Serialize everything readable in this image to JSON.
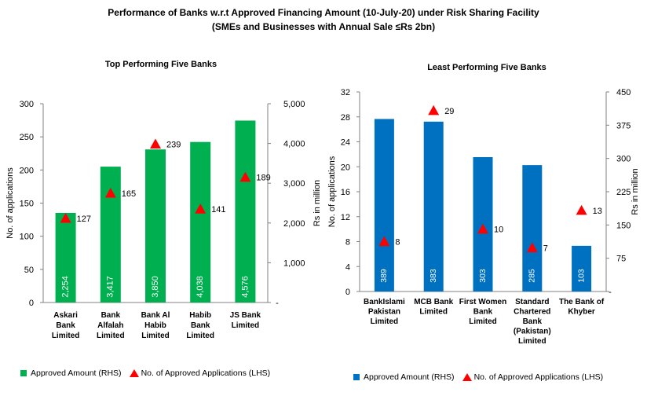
{
  "title": "Performance of Banks w.r.t Approved Financing Amount (10-July-20) under Risk Sharing Facility",
  "subtitle": "(SMEs and Businesses with Annual Sale ≤Rs 2bn)",
  "colors": {
    "left_bar": "#00b050",
    "right_bar": "#0070c0",
    "marker": "#ff0000"
  },
  "chart_data": [
    {
      "type": "bar",
      "title": "Top Performing Five Banks",
      "categories": [
        [
          "Askari",
          "Bank",
          "Limited"
        ],
        [
          "Bank",
          "Alfalah",
          "Limited"
        ],
        [
          "Bank Al",
          "Habib",
          "Limited"
        ],
        [
          "Habib",
          "Bank",
          "Limited"
        ],
        [
          "JS Bank",
          "Limited"
        ]
      ],
      "series": [
        {
          "name": "Approved Amount (RHS)",
          "axis": "right",
          "values": [
            2254,
            3417,
            3850,
            4038,
            4576
          ],
          "labels": [
            "2,254",
            "3,417",
            "3,850",
            "4,038",
            "4,576"
          ]
        },
        {
          "name": "No. of Approved Applications (LHS)",
          "axis": "left",
          "marker": "triangle",
          "values": [
            127,
            165,
            239,
            141,
            189
          ]
        }
      ],
      "ylabel": "No. of applications",
      "ylim": [
        0,
        300
      ],
      "yticks": [
        "0",
        "50",
        "100",
        "150",
        "200",
        "250",
        "300"
      ],
      "y2label": "Rs in million",
      "y2lim": [
        0,
        5000
      ],
      "y2ticks": [
        "-",
        "1,000",
        "2,000",
        "3,000",
        "4,000",
        "5,000"
      ]
    },
    {
      "type": "bar",
      "title": "Least Performing Five Banks",
      "categories": [
        [
          "BankIslami",
          "Pakistan",
          "Limited"
        ],
        [
          "MCB Bank",
          "Limited"
        ],
        [
          "First Women",
          "Bank",
          "Limited"
        ],
        [
          "Standard",
          "Chartered",
          "Bank",
          "(Pakistan)",
          "Limited"
        ],
        [
          "The Bank of",
          "Khyber"
        ]
      ],
      "series": [
        {
          "name": "Approved Amount (RHS)",
          "axis": "right",
          "values": [
            389,
            383,
            303,
            285,
            103
          ],
          "labels": [
            "389",
            "383",
            "303",
            "285",
            "103"
          ]
        },
        {
          "name": "No. of Approved Applications (LHS)",
          "axis": "left",
          "marker": "triangle",
          "values": [
            8,
            29,
            10,
            7,
            13
          ]
        }
      ],
      "ylabel": "No. of applications",
      "ylim": [
        0,
        32
      ],
      "yticks": [
        "0",
        "4",
        "8",
        "12",
        "16",
        "20",
        "24",
        "28",
        "32"
      ],
      "y2label": "Rs in million",
      "y2lim": [
        0,
        450
      ],
      "y2ticks": [
        "-",
        "75",
        "150",
        "225",
        "300",
        "375",
        "450"
      ]
    }
  ]
}
